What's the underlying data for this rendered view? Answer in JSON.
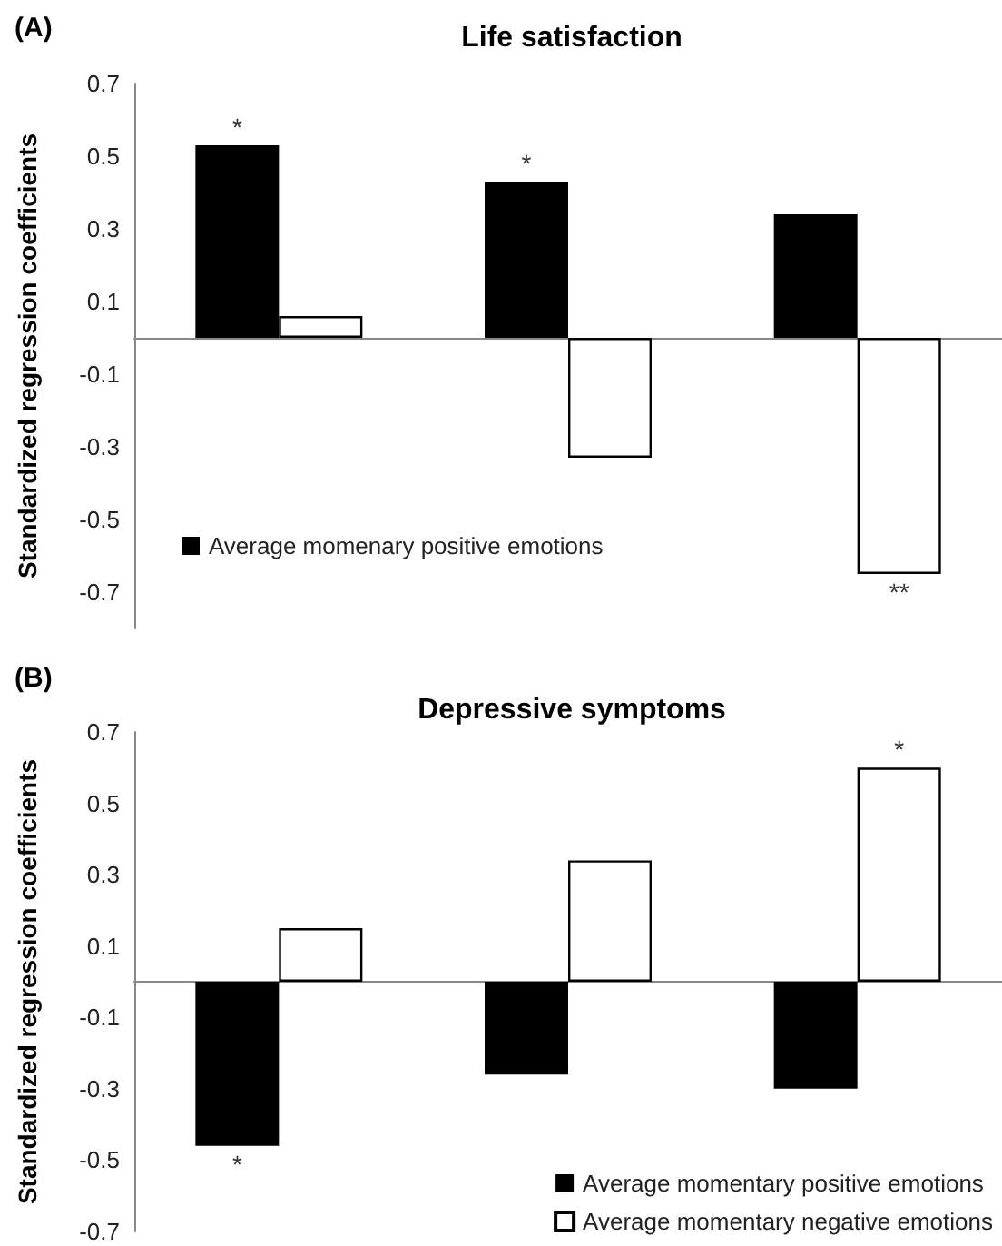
{
  "chart_data": [
    {
      "type": "bar",
      "title": "Life satisfaction",
      "ylabel": "Standardized regression coefficients",
      "annotations": [
        "(A)"
      ],
      "categories": [
        null,
        null,
        null
      ],
      "series": [
        {
          "name": "Average momenary positive emotions",
          "color": "#000000",
          "values": [
            0.53,
            0.43,
            0.34
          ],
          "value_labels": [
            "*",
            "*",
            null
          ]
        },
        {
          "color": "#ffffff",
          "values": [
            0.06,
            -0.33,
            -0.65
          ],
          "value_labels": [
            null,
            null,
            "**"
          ]
        }
      ],
      "ylim": [
        -0.8,
        0.7
      ],
      "yticks": [
        -0.7,
        -0.5,
        -0.3,
        -0.1,
        0.1,
        0.3,
        0.5,
        0.7
      ],
      "legend": "bottom left"
    },
    {
      "type": "bar",
      "title": "Depressive symptoms",
      "ylabel": "Standardized regression coefficients",
      "annotations": [
        "(B)"
      ],
      "categories": [
        null,
        null,
        null
      ],
      "series": [
        {
          "name": "Average momentary positive emotions",
          "color": "#000000",
          "values": [
            -0.46,
            -0.26,
            -0.3
          ],
          "value_labels": [
            "*",
            null,
            null
          ]
        },
        {
          "name": "Average momentary negative emotions",
          "color": "#ffffff",
          "values": [
            0.15,
            0.34,
            0.6
          ],
          "value_labels": [
            null,
            null,
            "*"
          ]
        }
      ],
      "ylim": [
        -0.7,
        0.7
      ],
      "yticks": [
        -0.7,
        -0.5,
        -0.3,
        -0.1,
        0.1,
        0.3,
        0.5,
        0.7
      ],
      "legend": "bottom right"
    }
  ]
}
